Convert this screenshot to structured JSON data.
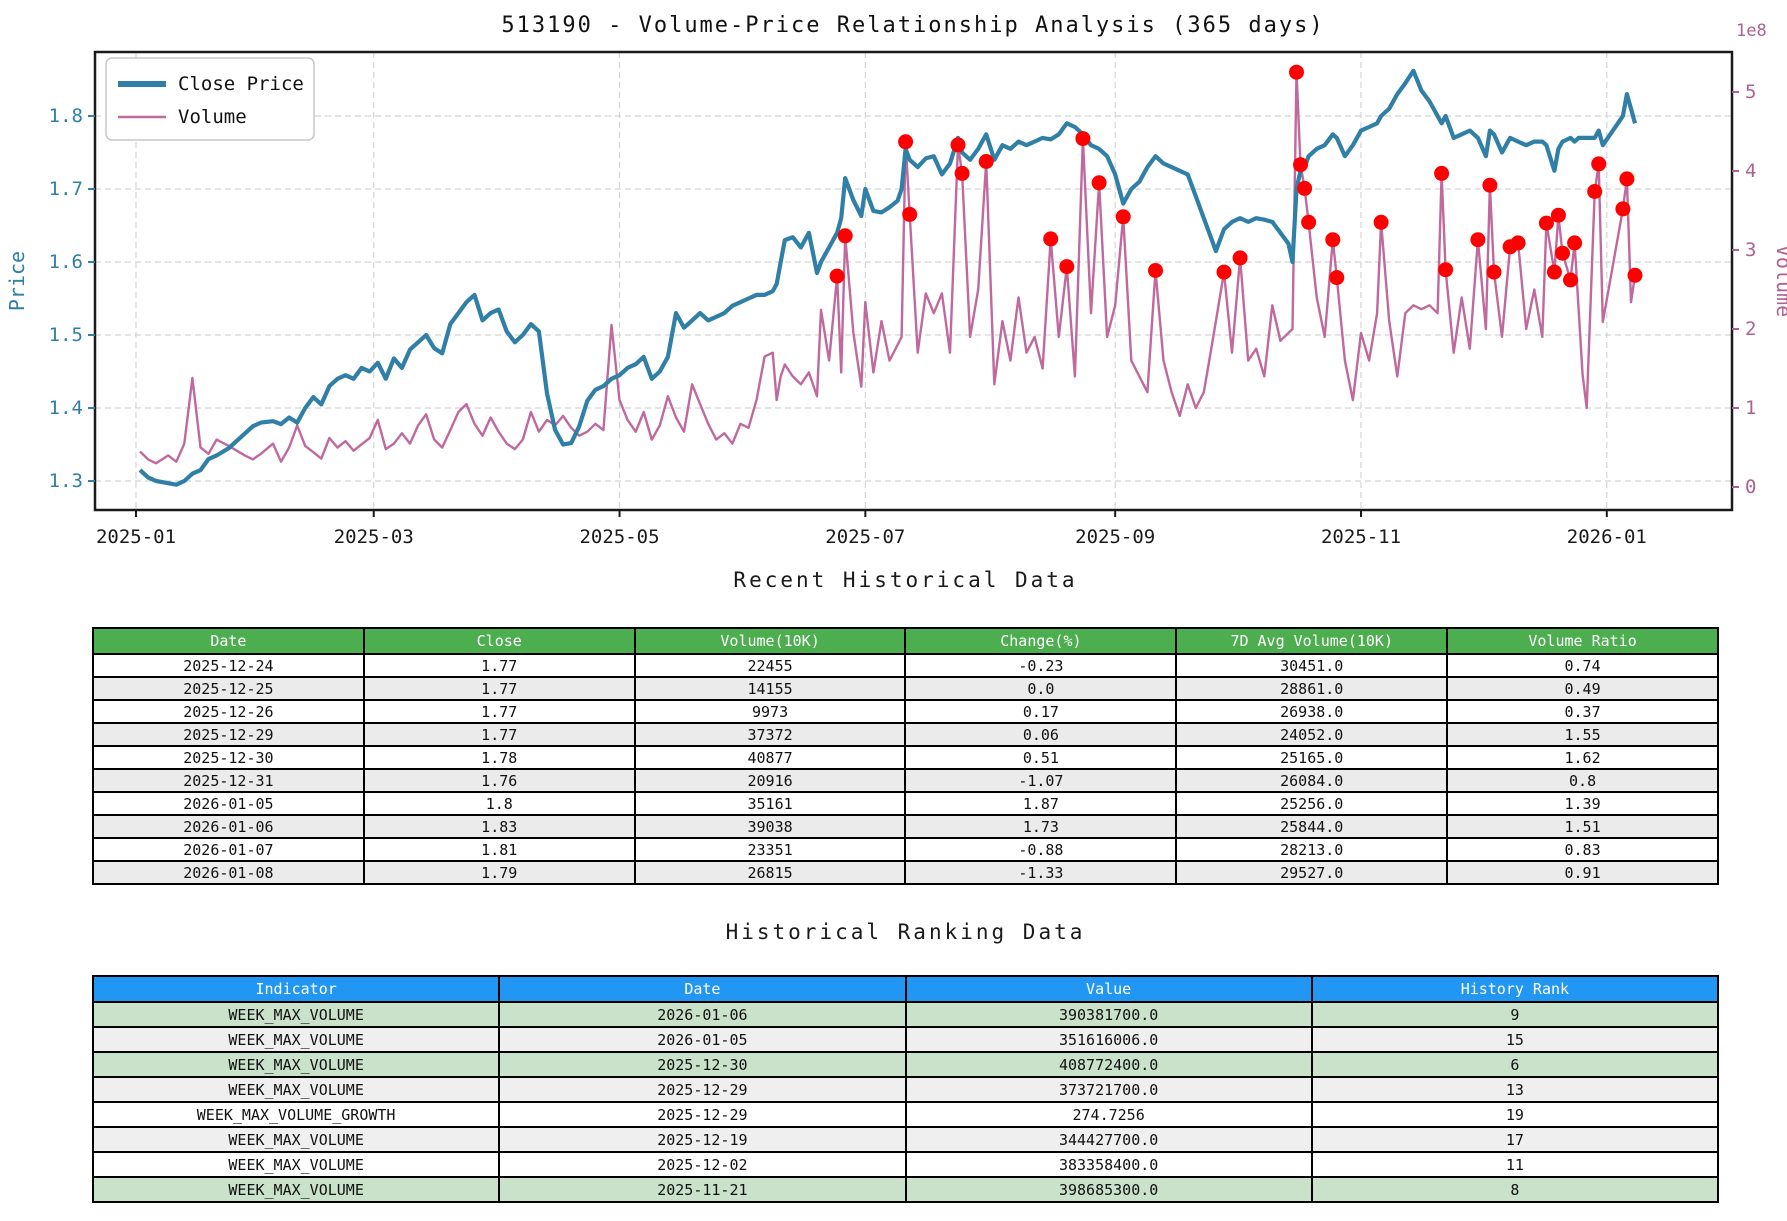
{
  "chart": {
    "title": "513190 - Volume-Price Relationship Analysis (365 days)",
    "legend": [
      "Close Price",
      "Volume"
    ],
    "colors": {
      "close_line": "#2f7fa6",
      "volume_line": "#bf699c",
      "spike_dot": "#ff0000",
      "left_axis": "#2f7fa6",
      "right_axis": "#b06090",
      "grid": "#d4d4d4",
      "spine": "#1a1a1a",
      "tick_text": "#1a1a1a"
    }
  },
  "chart_data": {
    "type": "line",
    "title": "513190 - Volume-Price Relationship Analysis (365 days)",
    "xlabel": "",
    "ylabel_left": "Price",
    "ylabel_right": "Volume",
    "right_offset_label": "1e8",
    "legend": [
      "Close Price",
      "Volume"
    ],
    "legend_position": "upper left",
    "grid": true,
    "x_unit": "days_since_2025-01-01",
    "x_ticks": {
      "days": [
        0,
        59,
        120,
        181,
        243,
        304,
        365
      ],
      "labels": [
        "2025-01",
        "2025-03",
        "2025-05",
        "2025-07",
        "2025-09",
        "2025-11",
        "2026-01"
      ]
    },
    "y_left": {
      "label": "Price",
      "tick_values": [
        1.3,
        1.4,
        1.5,
        1.6,
        1.7,
        1.8
      ],
      "range": [
        1.2603,
        1.8877
      ]
    },
    "y_right": {
      "label": "Volume",
      "tick_values": [
        0,
        1,
        2,
        3,
        4,
        5
      ],
      "range": [
        -0.291,
        5.506
      ],
      "scale_note": "1e8"
    },
    "x_range_days": [
      -10.17,
      396.07
    ],
    "series": [
      {
        "name": "Close Price",
        "axis": "left"
      },
      {
        "name": "Volume",
        "axis": "right",
        "unit": "1e8 shares"
      }
    ],
    "points": {
      "days": [
        1,
        3,
        5,
        8,
        10,
        12,
        14,
        16,
        18,
        20,
        23,
        25,
        27,
        29,
        31,
        34,
        36,
        38,
        40,
        42,
        44,
        46,
        48,
        50,
        52,
        54,
        56,
        58,
        60,
        62,
        64,
        66,
        68,
        70,
        72,
        74,
        76,
        78,
        80,
        82,
        84,
        86,
        88,
        90,
        92,
        94,
        96,
        98,
        100,
        102,
        104,
        106,
        108,
        110,
        112,
        114,
        116,
        118,
        120,
        122,
        124,
        126,
        128,
        130,
        132,
        134,
        136,
        138,
        140,
        142,
        144,
        146,
        148,
        150,
        152,
        154,
        156,
        158,
        159,
        160,
        161,
        163,
        165,
        167,
        169,
        170,
        172,
        174,
        175,
        176,
        178,
        180,
        181,
        183,
        185,
        187,
        189,
        190,
        191,
        192,
        194,
        196,
        198,
        200,
        202,
        204,
        205,
        207,
        209,
        211,
        213,
        215,
        217,
        219,
        221,
        223,
        225,
        227,
        229,
        231,
        233,
        235,
        237,
        239,
        241,
        243,
        245,
        247,
        249,
        251,
        253,
        255,
        257,
        259,
        261,
        263,
        265,
        266,
        268,
        270,
        272,
        274,
        276,
        278,
        280,
        282,
        284,
        286,
        287,
        288,
        289,
        290,
        291,
        293,
        295,
        297,
        298,
        300,
        302,
        304,
        306,
        308,
        309,
        311,
        313,
        315,
        317,
        319,
        321,
        323,
        324,
        325,
        327,
        329,
        331,
        333,
        335,
        336,
        337,
        339,
        341,
        343,
        345,
        347,
        349,
        350,
        352,
        353,
        354,
        356,
        357,
        358,
        359,
        360,
        362,
        363,
        364,
        369,
        370,
        371,
        372
      ],
      "close": [
        1.315,
        1.305,
        1.3,
        1.297,
        1.295,
        1.3,
        1.31,
        1.315,
        1.33,
        1.335,
        1.345,
        1.355,
        1.365,
        1.375,
        1.38,
        1.382,
        1.378,
        1.387,
        1.38,
        1.4,
        1.415,
        1.405,
        1.43,
        1.44,
        1.445,
        1.44,
        1.455,
        1.45,
        1.462,
        1.44,
        1.468,
        1.455,
        1.48,
        1.49,
        1.5,
        1.482,
        1.475,
        1.515,
        1.53,
        1.545,
        1.555,
        1.52,
        1.53,
        1.535,
        1.505,
        1.49,
        1.5,
        1.515,
        1.505,
        1.42,
        1.37,
        1.35,
        1.352,
        1.375,
        1.41,
        1.425,
        1.43,
        1.44,
        1.445,
        1.455,
        1.46,
        1.47,
        1.44,
        1.45,
        1.47,
        1.53,
        1.51,
        1.52,
        1.53,
        1.52,
        1.525,
        1.53,
        1.54,
        1.545,
        1.55,
        1.555,
        1.555,
        1.56,
        1.57,
        1.6,
        1.63,
        1.634,
        1.62,
        1.64,
        1.585,
        1.6,
        1.62,
        1.64,
        1.66,
        1.715,
        1.685,
        1.663,
        1.7,
        1.67,
        1.668,
        1.675,
        1.684,
        1.7,
        1.755,
        1.74,
        1.73,
        1.742,
        1.745,
        1.72,
        1.735,
        1.77,
        1.75,
        1.74,
        1.755,
        1.775,
        1.74,
        1.76,
        1.755,
        1.765,
        1.76,
        1.765,
        1.77,
        1.768,
        1.775,
        1.79,
        1.785,
        1.775,
        1.76,
        1.755,
        1.745,
        1.72,
        1.68,
        1.7,
        1.71,
        1.73,
        1.745,
        1.735,
        1.73,
        1.725,
        1.72,
        1.69,
        1.66,
        1.645,
        1.615,
        1.645,
        1.655,
        1.66,
        1.655,
        1.66,
        1.658,
        1.655,
        1.64,
        1.625,
        1.6,
        1.7,
        1.725,
        1.73,
        1.745,
        1.755,
        1.76,
        1.775,
        1.77,
        1.745,
        1.76,
        1.78,
        1.785,
        1.79,
        1.8,
        1.81,
        1.83,
        1.845,
        1.862,
        1.835,
        1.82,
        1.8,
        1.79,
        1.8,
        1.77,
        1.775,
        1.78,
        1.77,
        1.745,
        1.78,
        1.775,
        1.75,
        1.77,
        1.765,
        1.76,
        1.765,
        1.765,
        1.76,
        1.725,
        1.755,
        1.765,
        1.77,
        1.765,
        1.77,
        1.77,
        1.77,
        1.77,
        1.78,
        1.76,
        1.8,
        1.83,
        1.81,
        1.79
      ],
      "volume_1e8": [
        0.45,
        0.35,
        0.3,
        0.4,
        0.32,
        0.55,
        1.38,
        0.5,
        0.42,
        0.6,
        0.52,
        0.46,
        0.4,
        0.35,
        0.42,
        0.55,
        0.32,
        0.5,
        0.78,
        0.52,
        0.44,
        0.36,
        0.62,
        0.5,
        0.58,
        0.46,
        0.54,
        0.62,
        0.85,
        0.48,
        0.55,
        0.68,
        0.55,
        0.78,
        0.92,
        0.6,
        0.5,
        0.72,
        0.95,
        1.05,
        0.8,
        0.65,
        0.88,
        0.7,
        0.55,
        0.48,
        0.6,
        0.95,
        0.7,
        0.85,
        0.78,
        0.9,
        0.75,
        0.65,
        0.7,
        0.8,
        0.72,
        2.05,
        1.1,
        0.85,
        0.7,
        0.95,
        0.6,
        0.78,
        1.15,
        0.88,
        0.7,
        1.3,
        1.05,
        0.8,
        0.6,
        0.68,
        0.55,
        0.8,
        0.75,
        1.1,
        1.65,
        1.7,
        1.1,
        1.4,
        1.55,
        1.4,
        1.3,
        1.45,
        1.15,
        2.24,
        1.6,
        2.67,
        1.45,
        3.18,
        1.96,
        1.27,
        2.34,
        1.45,
        2.1,
        1.6,
        1.8,
        1.9,
        4.37,
        3.45,
        1.7,
        2.45,
        2.2,
        2.45,
        1.7,
        4.33,
        3.97,
        1.9,
        2.5,
        4.12,
        1.3,
        2.1,
        1.6,
        2.4,
        1.7,
        1.9,
        1.5,
        3.14,
        1.9,
        2.79,
        1.4,
        4.41,
        2.2,
        3.85,
        1.9,
        2.3,
        3.42,
        1.6,
        1.4,
        1.2,
        2.74,
        1.6,
        1.2,
        0.9,
        1.3,
        1.0,
        1.2,
        1.5,
        2.1,
        2.72,
        1.7,
        2.9,
        1.6,
        1.75,
        1.4,
        2.3,
        1.85,
        1.95,
        2.0,
        5.25,
        4.08,
        3.78,
        3.35,
        2.4,
        1.9,
        3.13,
        2.65,
        1.6,
        1.1,
        1.95,
        1.6,
        2.2,
        3.35,
        2.1,
        1.4,
        2.2,
        2.3,
        2.25,
        2.3,
        2.2,
        3.97,
        2.75,
        1.7,
        2.4,
        1.75,
        3.13,
        2.0,
        3.82,
        2.72,
        1.9,
        3.04,
        3.09,
        2.0,
        2.5,
        1.9,
        3.34,
        2.72,
        3.44,
        2.96,
        2.62,
        3.09,
        2.25,
        1.42,
        1.0,
        3.74,
        4.09,
        2.09,
        3.52,
        3.9,
        2.34,
        2.68
      ],
      "spike_days": [
        174,
        176,
        191,
        192,
        204,
        205,
        211,
        227,
        231,
        235,
        239,
        245,
        253,
        270,
        274,
        288,
        289,
        290,
        291,
        297,
        298,
        309,
        324,
        325,
        333,
        336,
        337,
        341,
        343,
        350,
        352,
        353,
        354,
        356,
        357,
        362,
        363,
        369,
        370,
        372
      ]
    }
  },
  "recent_table": {
    "title": "Recent Historical Data",
    "headers": [
      "Date",
      "Close",
      "Volume(10K)",
      "Change(%)",
      "7D Avg Volume(10K)",
      "Volume Ratio"
    ],
    "rows": [
      [
        "2025-12-24",
        "1.77",
        "22455",
        "-0.23",
        "30451.0",
        "0.74"
      ],
      [
        "2025-12-25",
        "1.77",
        "14155",
        "0.0",
        "28861.0",
        "0.49"
      ],
      [
        "2025-12-26",
        "1.77",
        "9973",
        "0.17",
        "26938.0",
        "0.37"
      ],
      [
        "2025-12-29",
        "1.77",
        "37372",
        "0.06",
        "24052.0",
        "1.55"
      ],
      [
        "2025-12-30",
        "1.78",
        "40877",
        "0.51",
        "25165.0",
        "1.62"
      ],
      [
        "2025-12-31",
        "1.76",
        "20916",
        "-1.07",
        "26084.0",
        "0.8"
      ],
      [
        "2026-01-05",
        "1.8",
        "35161",
        "1.87",
        "25256.0",
        "1.39"
      ],
      [
        "2026-01-06",
        "1.83",
        "39038",
        "1.73",
        "25844.0",
        "1.51"
      ],
      [
        "2026-01-07",
        "1.81",
        "23351",
        "-0.88",
        "28213.0",
        "0.83"
      ],
      [
        "2026-01-08",
        "1.79",
        "26815",
        "-1.33",
        "29527.0",
        "0.91"
      ]
    ]
  },
  "ranking_table": {
    "title": "Historical Ranking Data",
    "headers": [
      "Indicator",
      "Date",
      "Value",
      "History Rank"
    ],
    "rows": [
      [
        "WEEK_MAX_VOLUME",
        "2026-01-06",
        "390381700.0",
        "9"
      ],
      [
        "WEEK_MAX_VOLUME",
        "2026-01-05",
        "351616006.0",
        "15"
      ],
      [
        "WEEK_MAX_VOLUME",
        "2025-12-30",
        "408772400.0",
        "6"
      ],
      [
        "WEEK_MAX_VOLUME",
        "2025-12-29",
        "373721700.0",
        "13"
      ],
      [
        "WEEK_MAX_VOLUME_GROWTH",
        "2025-12-29",
        "274.7256",
        "19"
      ],
      [
        "WEEK_MAX_VOLUME",
        "2025-12-19",
        "344427700.0",
        "17"
      ],
      [
        "WEEK_MAX_VOLUME",
        "2025-12-02",
        "383358400.0",
        "11"
      ],
      [
        "WEEK_MAX_VOLUME",
        "2025-11-21",
        "398685300.0",
        "8"
      ]
    ],
    "row_styles": [
      "green",
      "stripe",
      "green",
      "stripe",
      "plain",
      "stripe",
      "plain",
      "green"
    ]
  }
}
